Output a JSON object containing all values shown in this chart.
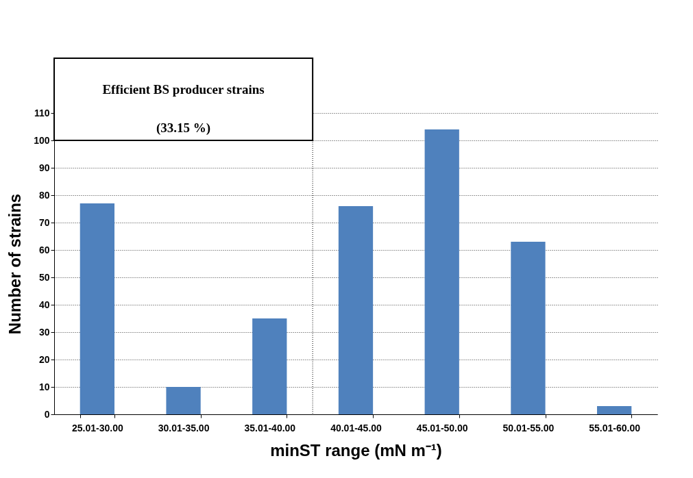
{
  "chart_data": {
    "type": "bar",
    "xlabel": "minST range (mN m⁻¹)",
    "ylabel": "Number of strains",
    "categories": [
      "25.01-30.00",
      "30.01-35.00",
      "35.01-40.00",
      "40.01-45.00",
      "45.01-50.00",
      "50.01-55.00",
      "55.01-60.00"
    ],
    "values": [
      77,
      10,
      35,
      76,
      104,
      63,
      3
    ],
    "color": "#4f81bd",
    "ylim": [
      0,
      110
    ],
    "yticks": [
      0,
      10,
      20,
      30,
      40,
      50,
      60,
      70,
      80,
      90,
      100,
      110
    ],
    "grid": "y",
    "bands": [
      {
        "axis": "x",
        "from": "25.01-30.00",
        "to": "35.01-40.00",
        "label": "Efficient BS producer strains\n(33.15 %)"
      }
    ]
  }
}
